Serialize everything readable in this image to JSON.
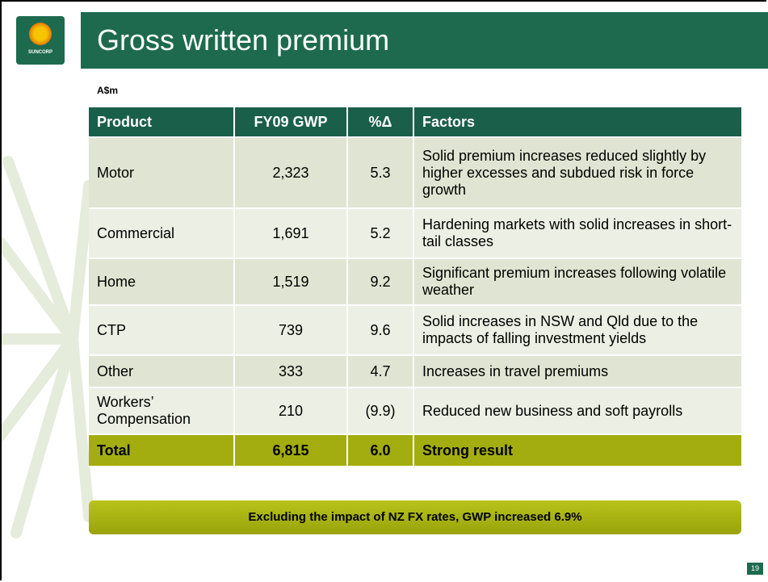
{
  "logo": {
    "text": "SUNCORP"
  },
  "header": {
    "title": "Gross written premium"
  },
  "unit": "A$m",
  "table": {
    "columns": [
      "Product",
      "FY09 GWP",
      "%Δ",
      "Factors"
    ],
    "rows": [
      [
        "Motor",
        "2,323",
        "5.3",
        "Solid premium increases reduced slightly by higher excesses and subdued risk in force growth"
      ],
      [
        "Commercial",
        "1,691",
        "5.2",
        "Hardening markets with solid increases in short-tail classes"
      ],
      [
        "Home",
        "1,519",
        "9.2",
        "Significant premium increases following volatile weather"
      ],
      [
        "CTP",
        "739",
        "9.6",
        "Solid increases in NSW and Qld due to the impacts of falling investment yields"
      ],
      [
        "Other",
        "333",
        "4.7",
        "Increases in travel premiums"
      ],
      [
        "Workers’ Compensation",
        "210",
        "(9.9)",
        "Reduced new business and soft payrolls"
      ]
    ],
    "total": [
      "Total",
      "6,815",
      "6.0",
      "Strong result"
    ]
  },
  "banner": "Excluding the impact of NZ FX rates, GWP increased 6.9%",
  "page_number": "19"
}
